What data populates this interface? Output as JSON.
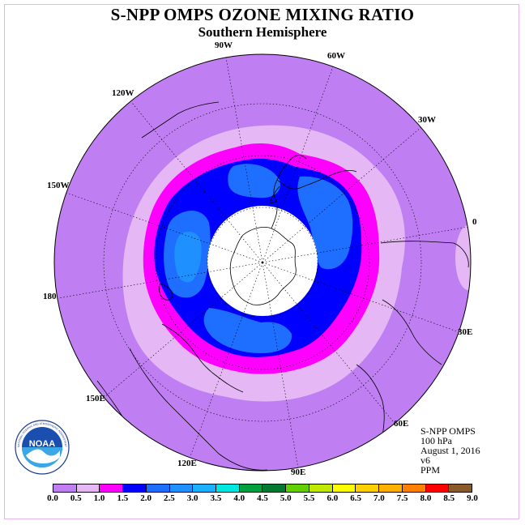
{
  "title": "S-NPP OMPS OZONE MIXING RATIO",
  "subtitle": "Southern Hemisphere",
  "longitude_labels": [
    "90W",
    "60W",
    "30W",
    "0",
    "30E",
    "60E",
    "90E",
    "120E",
    "150E",
    "180",
    "150W",
    "120W"
  ],
  "info": {
    "instrument": "S-NPP OMPS",
    "level": "100 hPa",
    "date": "August 1, 2016",
    "version": "v6",
    "units": "PPM"
  },
  "colorbar": {
    "ticks": [
      "0.0",
      "0.5",
      "1.0",
      "1.5",
      "2.0",
      "2.5",
      "3.0",
      "3.5",
      "4.0",
      "4.5",
      "5.0",
      "5.5",
      "6.0",
      "6.5",
      "7.0",
      "7.5",
      "8.0",
      "8.5",
      "9.0"
    ],
    "colors": [
      "#bf7ff2",
      "#e5b8f5",
      "#ff00ff",
      "#0000ff",
      "#1e6fff",
      "#1e90ff",
      "#1ab0ff",
      "#00e6e0",
      "#00a040",
      "#007a30",
      "#60d000",
      "#c0e800",
      "#ffff00",
      "#ffd000",
      "#ffb000",
      "#ff8000",
      "#ff0000",
      "#8b5a2b"
    ]
  },
  "logo": {
    "text": "NOAA",
    "ring_text": "NATIONAL OCEANIC AND ATMOSPHERIC ADMINISTRATION"
  },
  "map_colors": {
    "background": "#bf7ff2",
    "ring_light": "#e5b8f5",
    "ring_magenta": "#ff00ff",
    "ring_blue": "#0000ff",
    "patch_mid": "#1e6fff",
    "patch_light": "#1e90ff",
    "polar_cap": "#ffffff"
  }
}
